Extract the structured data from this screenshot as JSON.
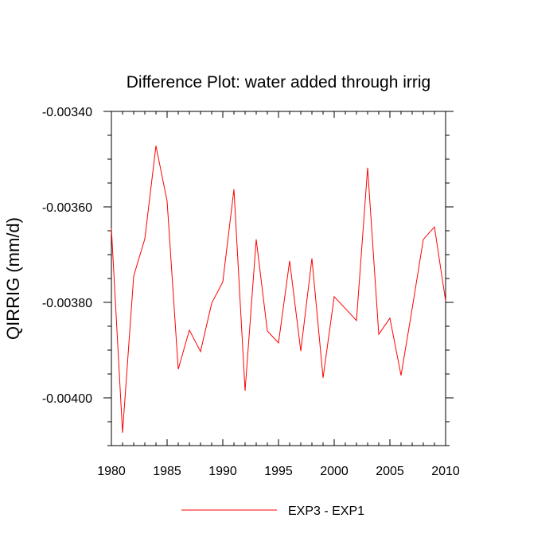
{
  "chart_data": {
    "type": "line",
    "title": "Difference Plot: water added through irrig",
    "xlabel": "",
    "ylabel": "QIRRIG  (mm/d)",
    "xlim": [
      1980,
      2010
    ],
    "ylim": [
      -0.0041,
      -0.0034
    ],
    "xticks": [
      1980,
      1985,
      1990,
      1995,
      2000,
      2005,
      2010
    ],
    "xtick_labels": [
      "1980",
      "1985",
      "1990",
      "1995",
      "2000",
      "2005",
      "2010"
    ],
    "yticks": [
      -0.0034,
      -0.0036,
      -0.0038,
      -0.004
    ],
    "ytick_labels": [
      "-0.00340",
      "-0.00360",
      "-0.00380",
      "-0.00400"
    ],
    "grid": false,
    "legend_position": "bottom-center",
    "series": [
      {
        "name": "EXP3 - EXP1",
        "color": "#ff0000",
        "x": [
          1980,
          1981,
          1982,
          1983,
          1984,
          1985,
          1986,
          1987,
          1988,
          1989,
          1990,
          1991,
          1992,
          1993,
          1994,
          1995,
          1996,
          1997,
          1998,
          1999,
          2000,
          2001,
          2002,
          2003,
          2004,
          2005,
          2006,
          2007,
          2008,
          2009,
          2010
        ],
        "values": [
          -0.003645,
          -0.004073,
          -0.003745,
          -0.003667,
          -0.003472,
          -0.003588,
          -0.00394,
          -0.003858,
          -0.003903,
          -0.003802,
          -0.003757,
          -0.003563,
          -0.003985,
          -0.003668,
          -0.00386,
          -0.003885,
          -0.003713,
          -0.003902,
          -0.003708,
          -0.003958,
          -0.003788,
          -0.003813,
          -0.003838,
          -0.003518,
          -0.003867,
          -0.003833,
          -0.003953,
          -0.003813,
          -0.003668,
          -0.003642,
          -0.003797
        ]
      }
    ]
  }
}
